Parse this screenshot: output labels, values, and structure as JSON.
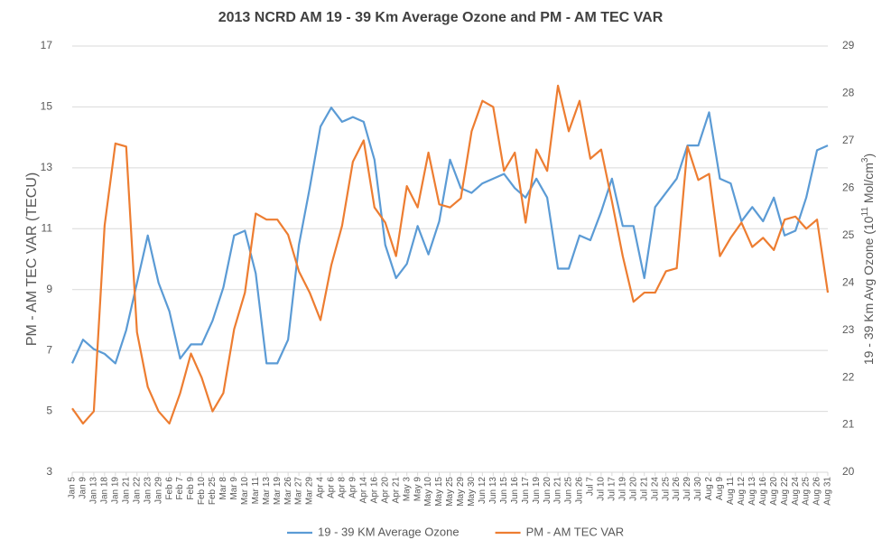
{
  "chart_data": {
    "type": "line",
    "title": "2013 NCRD AM 19 - 39 Km Average Ozone and PM - AM TEC VAR",
    "y_label": "PM - AM TEC VAR (TECU)",
    "y2_label": [
      "19 - 39 Km Avg Ozone (10",
      "11",
      " Mol/cm",
      "3",
      ")"
    ],
    "categories": [
      "Jan 5",
      "Jan 9",
      "Jan 13",
      "Jan 18",
      "Jan 19",
      "Jan 21",
      "Jan 22",
      "Jan 23",
      "Jan 29",
      "Feb 6",
      "Feb 7",
      "Feb 9",
      "Feb 10",
      "Feb 25",
      "Mar 8",
      "Mar 9",
      "Mar 10",
      "Mar 11",
      "Mar 13",
      "Mar 19",
      "Mar 26",
      "Mar 27",
      "Mar 29",
      "Apr 4",
      "Apr 6",
      "Apr 8",
      "Apr 9",
      "Apr 14",
      "Apr 16",
      "Apr 20",
      "Apr 21",
      "May 3",
      "May 9",
      "May 10",
      "May 15",
      "May 25",
      "May 29",
      "May 30",
      "Jun 12",
      "Jun 13",
      "Jun 15",
      "Jun 16",
      "Jun 17",
      "Jun 19",
      "Jun 20",
      "Jun 21",
      "Jun 25",
      "Jun 26",
      "Jul 7",
      "Jul 10",
      "Jul 17",
      "Jul 19",
      "Jul 20",
      "Jul 21",
      "Jul 24",
      "Jul 25",
      "Jul 26",
      "Jul 29",
      "Jul 30",
      "Aug 2",
      "Aug 9",
      "Aug 11",
      "Aug 12",
      "Aug 13",
      "Aug 16",
      "Aug 20",
      "Aug 22",
      "Aug 24",
      "Aug 25",
      "Aug 26",
      "Aug 31"
    ],
    "series": [
      {
        "name": "19 - 39 KM Average Ozone",
        "color": "#5b9bd5",
        "axis": "y2",
        "values": [
          22.3,
          22.8,
          22.6,
          22.5,
          22.3,
          23.0,
          24.0,
          25.0,
          24.0,
          23.4,
          22.4,
          22.7,
          22.7,
          23.2,
          23.9,
          25.0,
          25.1,
          24.2,
          22.3,
          22.3,
          22.8,
          24.8,
          26.0,
          27.3,
          27.7,
          27.4,
          27.5,
          27.4,
          26.6,
          24.8,
          24.1,
          24.4,
          25.2,
          24.6,
          25.3,
          26.6,
          26.0,
          25.9,
          26.1,
          26.2,
          26.3,
          26.0,
          25.8,
          26.2,
          25.8,
          24.3,
          24.3,
          25.0,
          24.9,
          25.5,
          26.2,
          25.2,
          25.2,
          24.1,
          25.6,
          25.9,
          26.2,
          26.9,
          26.9,
          27.6,
          26.2,
          26.1,
          25.3,
          25.6,
          25.3,
          25.8,
          25.0,
          25.1,
          25.8,
          26.8,
          26.9
        ]
      },
      {
        "name": "PM - AM TEC VAR",
        "color": "#ed7d31",
        "values": [
          5.1,
          4.6,
          5.0,
          11.1,
          13.8,
          13.7,
          7.6,
          5.8,
          5.0,
          4.6,
          5.6,
          6.9,
          6.1,
          5.0,
          5.6,
          7.7,
          8.9,
          11.5,
          11.3,
          11.3,
          10.8,
          9.6,
          8.9,
          8.0,
          9.8,
          11.1,
          13.2,
          13.9,
          11.7,
          11.2,
          10.1,
          12.4,
          11.7,
          13.5,
          11.8,
          11.7,
          12.0,
          14.2,
          15.2,
          15.0,
          12.9,
          13.5,
          11.2,
          13.6,
          12.9,
          15.7,
          14.2,
          15.2,
          13.3,
          13.6,
          11.9,
          10.1,
          8.6,
          8.9,
          8.9,
          9.6,
          9.7,
          13.7,
          12.6,
          12.8,
          10.1,
          10.7,
          11.2,
          10.4,
          10.7,
          10.3,
          11.3,
          11.4,
          11.0,
          11.3,
          8.9
        ]
      }
    ],
    "ylim": [
      3,
      17
    ],
    "yticks": [
      3,
      5,
      7,
      9,
      11,
      13,
      15,
      17
    ],
    "y2lim": [
      20,
      29
    ],
    "y2ticks": [
      20,
      21,
      22,
      23,
      24,
      25,
      26,
      27,
      28,
      29
    ],
    "grid": true
  }
}
